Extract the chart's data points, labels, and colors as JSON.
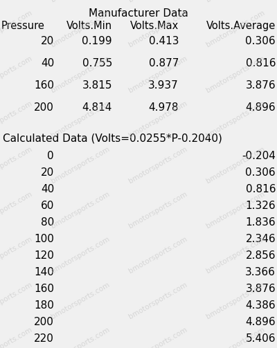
{
  "bg_color": "#f0f0f0",
  "watermark_text": "bmotorsports.com",
  "watermark_color": "#c8c8c8",
  "manufacturer_title": "Manufacturer Data",
  "manufacturer_headers": [
    "Pressure",
    "Volts.Min",
    "Volts.Max",
    "Volts.Average"
  ],
  "manufacturer_rows": [
    [
      20,
      0.199,
      0.413,
      0.306
    ],
    [
      40,
      0.755,
      0.877,
      0.816
    ],
    [
      160,
      3.815,
      3.937,
      3.876
    ],
    [
      200,
      4.814,
      4.978,
      4.896
    ]
  ],
  "calculated_title": "Calculated Data (Volts=0.0255*P-0.2040)",
  "calculated_rows": [
    [
      0,
      -0.204
    ],
    [
      20,
      0.306
    ],
    [
      40,
      0.816
    ],
    [
      60,
      1.326
    ],
    [
      80,
      1.836
    ],
    [
      100,
      2.346
    ],
    [
      120,
      2.856
    ],
    [
      140,
      3.366
    ],
    [
      160,
      3.876
    ],
    [
      180,
      4.386
    ],
    [
      200,
      4.896
    ],
    [
      220,
      5.406
    ]
  ],
  "font_size_title": 11,
  "font_size_header": 10.5,
  "font_size_data": 11,
  "font_size_watermark": 7.5,
  "fig_width": 4.0,
  "fig_height": 5.03,
  "dpi": 100
}
